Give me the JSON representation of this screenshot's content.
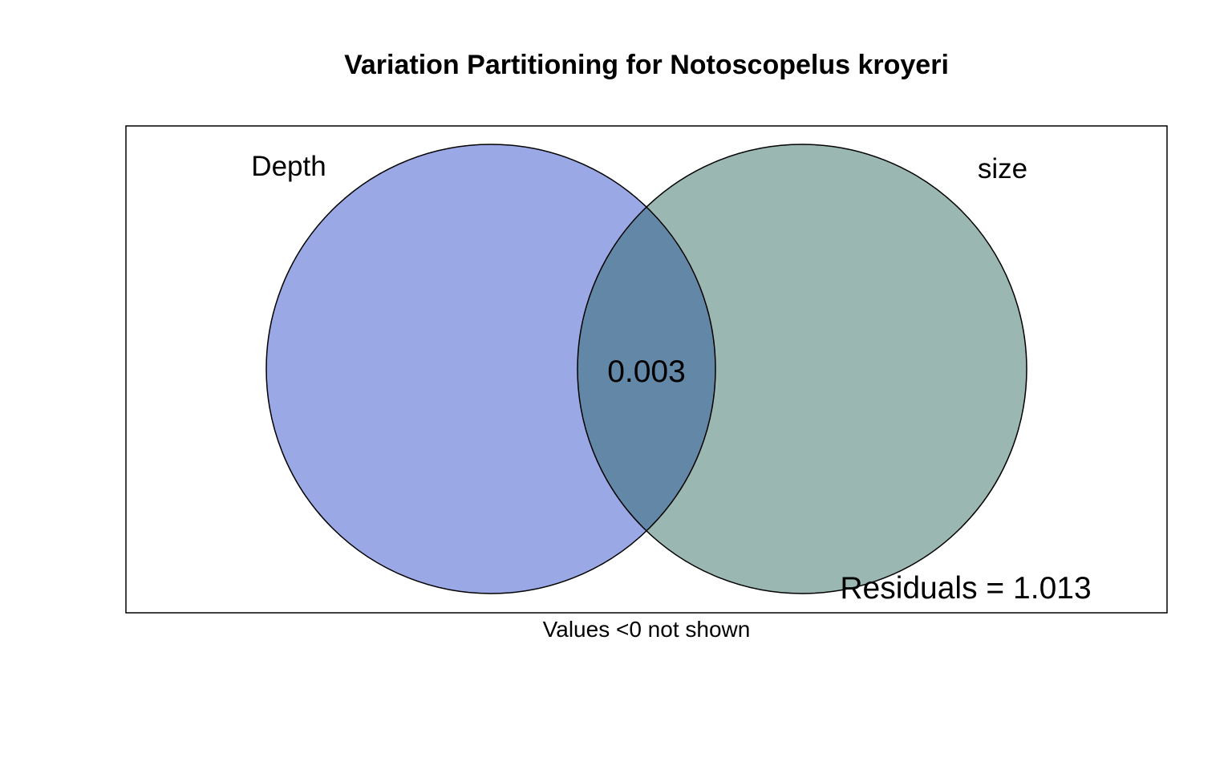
{
  "title": "Variation Partitioning for Notoscopelus kroyeri",
  "sets": {
    "left": {
      "label": "Depth",
      "color": "#9AA8E6"
    },
    "right": {
      "label": "size",
      "color": "#9AB7B1"
    }
  },
  "overlap": {
    "value": "0.003",
    "color": "#6387A6"
  },
  "residuals": "Residuals = 1.013",
  "note": "Values <0 not shown",
  "colors": {
    "outline": "#000000",
    "frame": "#000000",
    "background": "#ffffff"
  }
}
